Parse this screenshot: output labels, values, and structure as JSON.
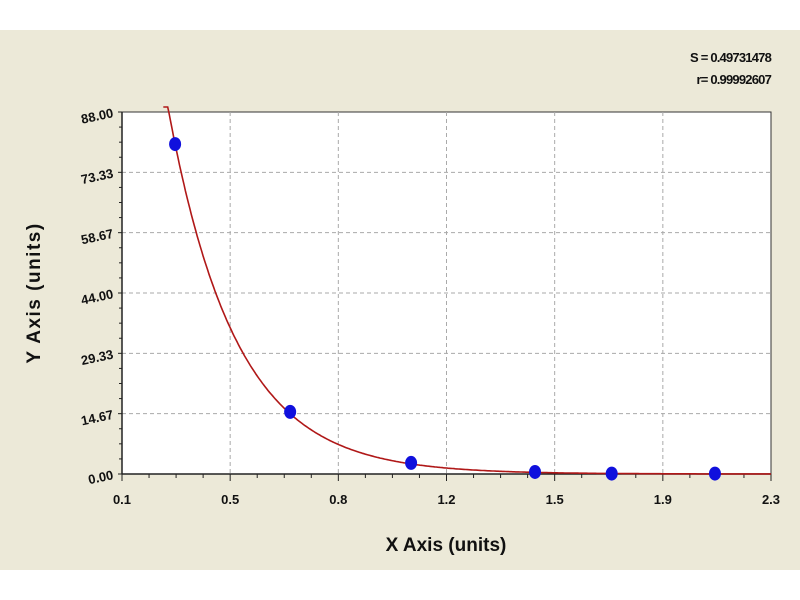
{
  "stats": {
    "s_label": "S = 0.49731478",
    "r_label": "r= 0.99992607"
  },
  "chart_data": {
    "type": "scatter",
    "title": "",
    "xlabel": "X Axis (units)",
    "ylabel": "Y Axis (units)",
    "xlim": [
      0.1,
      2.3
    ],
    "ylim": [
      0,
      88
    ],
    "x_tick_labels": [
      "0.1",
      "0.5",
      "0.8",
      "1.2",
      "1.5",
      "1.9",
      "2.3"
    ],
    "y_tick_labels": [
      "0.00",
      "14.67",
      "29.33",
      "44.00",
      "58.67",
      "73.33",
      "88.00"
    ],
    "grid": true,
    "points": [
      {
        "x": 0.28,
        "y": 80.2
      },
      {
        "x": 0.67,
        "y": 15.1
      },
      {
        "x": 1.08,
        "y": 2.7
      },
      {
        "x": 1.5,
        "y": 0.5
      },
      {
        "x": 1.76,
        "y": 0.1
      },
      {
        "x": 2.11,
        "y": 0.1
      }
    ],
    "fit_curve": {
      "model": "exponential decay",
      "a": 80.2,
      "b": 4.36,
      "x0": 0.28,
      "color": "#b01818"
    },
    "point_color": "#1010dd"
  }
}
